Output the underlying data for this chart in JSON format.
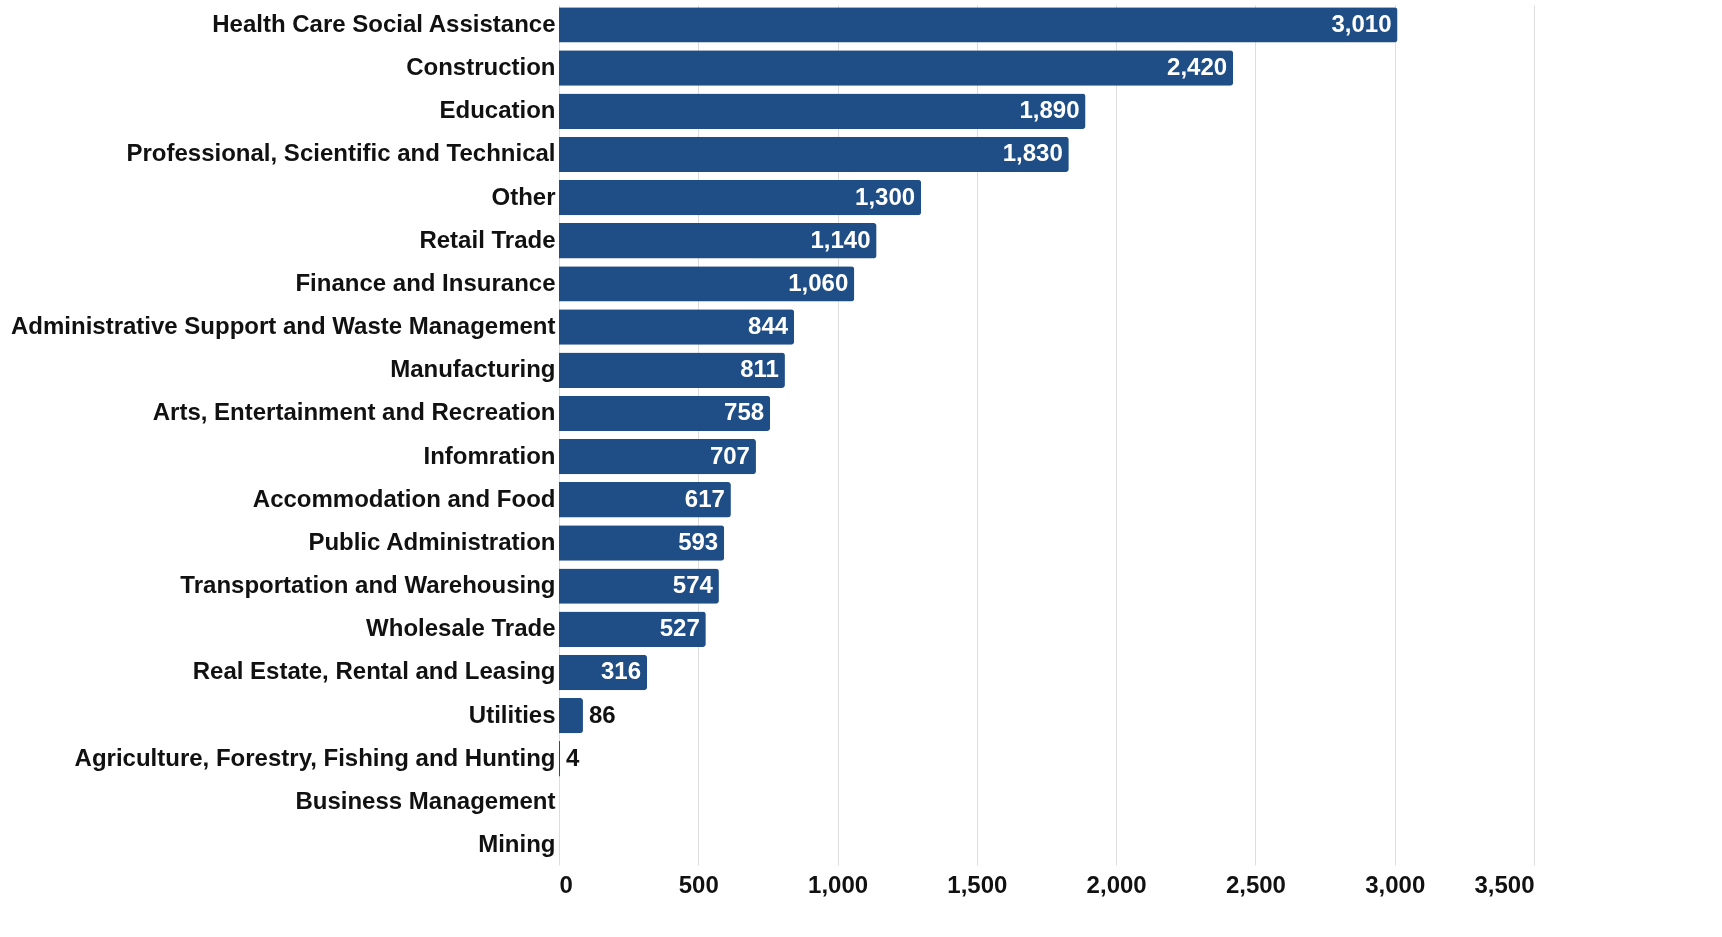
{
  "chart_data": {
    "type": "bar",
    "orientation": "horizontal",
    "categories": [
      "Health Care Social Assistance",
      "Construction",
      "Education",
      "Professional, Scientific and Technical",
      "Other",
      "Retail Trade",
      "Finance and Insurance",
      "Administrative Support and Waste Management",
      "Manufacturing",
      "Arts, Entertainment and Recreation",
      "Infomration",
      "Accommodation and Food",
      "Public Administration",
      "Transportation and Warehousing",
      "Wholesale Trade",
      "Real Estate, Rental and Leasing",
      "Utilities",
      "Agriculture, Forestry, Fishing and Hunting",
      "Business Management",
      "Mining"
    ],
    "values": [
      3010,
      2420,
      1890,
      1830,
      1300,
      1140,
      1060,
      844,
      811,
      758,
      707,
      617,
      593,
      574,
      527,
      316,
      86,
      4,
      null,
      null
    ],
    "value_labels": [
      "3,010",
      "2,420",
      "1,890",
      "1,830",
      "1,300",
      "1,140",
      "1,060",
      "844",
      "811",
      "758",
      "707",
      "617",
      "593",
      "574",
      "527",
      "316",
      "86",
      "4",
      null,
      null
    ],
    "color": "#1f4e87",
    "xlim": [
      0,
      3500
    ],
    "xticks": [
      0,
      {
        "value": 500,
        "label": "500"
      },
      {
        "value": 1000,
        "label": "1,000"
      },
      {
        "value": 1500,
        "label": "1,500"
      },
      {
        "value": 2000,
        "label": "2,000"
      },
      {
        "value": 2500,
        "label": "2,500"
      },
      {
        "value": 3000,
        "label": "3,000"
      },
      {
        "value": 3500,
        "label": "3,500"
      }
    ],
    "grid": "x"
  }
}
